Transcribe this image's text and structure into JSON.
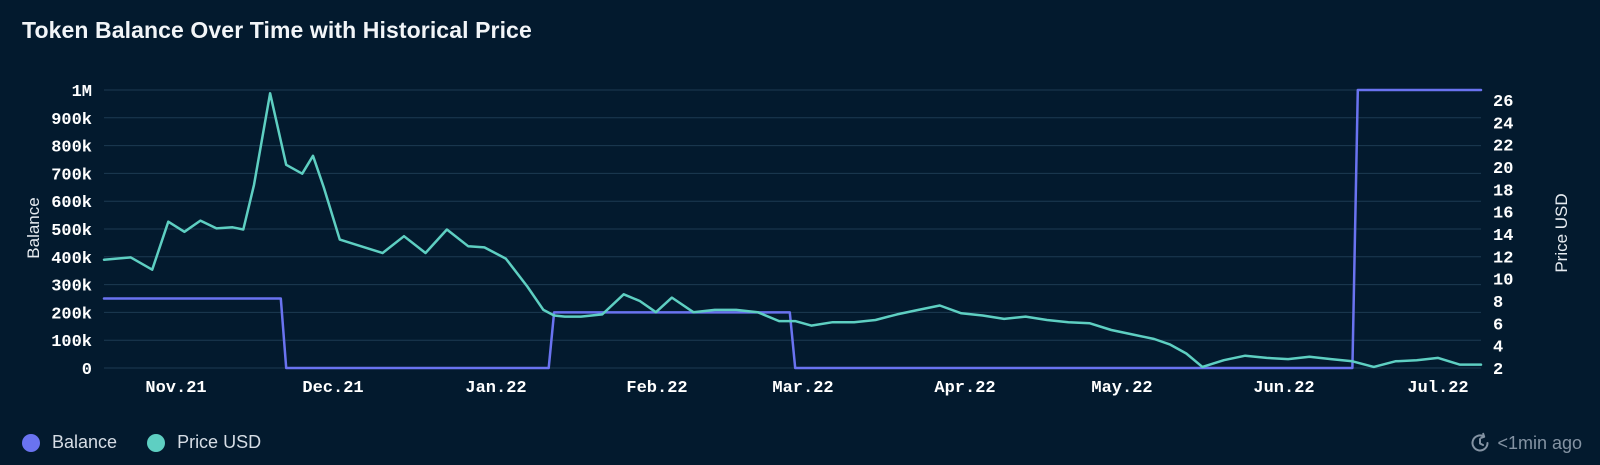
{
  "header": {
    "title": "Token Balance Over Time with Historical Price"
  },
  "footer": {
    "updated": "<1min ago",
    "updated_icon": "refresh-clock-icon"
  },
  "colors": {
    "balance": "#6a73f0",
    "price": "#5ecfc2",
    "grid": "#1d3a52",
    "background": "#031a2e"
  },
  "chart_data": {
    "type": "line",
    "title": "Token Balance Over Time with Historical Price",
    "x_labels": [
      "Nov.21",
      "Dec.21",
      "Jan.22",
      "Feb.22",
      "Mar.22",
      "Apr.22",
      "May.22",
      "Jun.22",
      "Jul.22"
    ],
    "x_range": [
      "2021-10-25",
      "2022-07-09"
    ],
    "y_left": {
      "label": "Balance",
      "range": [
        0,
        1000000
      ],
      "ticks": [
        0,
        100000,
        200000,
        300000,
        400000,
        500000,
        600000,
        700000,
        800000,
        900000,
        1000000
      ],
      "tick_labels": [
        "0",
        "100k",
        "200k",
        "300k",
        "400k",
        "500k",
        "600k",
        "700k",
        "800k",
        "900k",
        "1M"
      ]
    },
    "y_right": {
      "label": "Price USD",
      "range": [
        2,
        27
      ],
      "ticks": [
        2,
        4,
        6,
        8,
        10,
        12,
        14,
        16,
        18,
        20,
        22,
        24,
        26
      ],
      "tick_labels": [
        "2",
        "4",
        "6",
        "8",
        "10",
        "12",
        "14",
        "16",
        "18",
        "20",
        "22",
        "24",
        "26"
      ]
    },
    "grid": true,
    "legend": "bottom-left",
    "series": [
      {
        "name": "Balance",
        "axis": "left",
        "step": true,
        "x": [
          "2021-10-25",
          "2021-11-27",
          "2021-11-28",
          "2022-01-16",
          "2022-01-17",
          "2022-03-02",
          "2022-03-03",
          "2022-06-15",
          "2022-06-16",
          "2022-07-09"
        ],
        "values": [
          250000,
          250000,
          0,
          0,
          200000,
          200000,
          0,
          0,
          1000000,
          1000000
        ]
      },
      {
        "name": "Price USD",
        "axis": "right",
        "x": [
          "2021-10-25",
          "2021-10-30",
          "2021-11-03",
          "2021-11-06",
          "2021-11-09",
          "2021-11-12",
          "2021-11-15",
          "2021-11-18",
          "2021-11-20",
          "2021-11-22",
          "2021-11-25",
          "2021-11-28",
          "2021-12-01",
          "2021-12-03",
          "2021-12-05",
          "2021-12-08",
          "2021-12-12",
          "2021-12-16",
          "2021-12-20",
          "2021-12-24",
          "2021-12-28",
          "2022-01-01",
          "2022-01-04",
          "2022-01-08",
          "2022-01-12",
          "2022-01-15",
          "2022-01-17",
          "2022-01-19",
          "2022-01-22",
          "2022-01-26",
          "2022-01-30",
          "2022-02-02",
          "2022-02-05",
          "2022-02-08",
          "2022-02-12",
          "2022-02-16",
          "2022-02-20",
          "2022-02-24",
          "2022-02-28",
          "2022-03-03",
          "2022-03-06",
          "2022-03-10",
          "2022-03-14",
          "2022-03-18",
          "2022-03-22",
          "2022-03-26",
          "2022-03-30",
          "2022-04-03",
          "2022-04-07",
          "2022-04-11",
          "2022-04-15",
          "2022-04-19",
          "2022-04-23",
          "2022-04-27",
          "2022-05-01",
          "2022-05-05",
          "2022-05-09",
          "2022-05-12",
          "2022-05-15",
          "2022-05-18",
          "2022-05-22",
          "2022-05-26",
          "2022-05-30",
          "2022-06-03",
          "2022-06-07",
          "2022-06-11",
          "2022-06-15",
          "2022-06-19",
          "2022-06-23",
          "2022-06-27",
          "2022-07-01",
          "2022-07-05",
          "2022-07-09"
        ],
        "values": [
          11.7,
          11.9,
          10.8,
          15.1,
          14.2,
          15.2,
          14.5,
          14.6,
          14.4,
          18.4,
          26.6,
          20.2,
          19.4,
          21.0,
          18.2,
          13.5,
          12.9,
          12.3,
          13.8,
          12.3,
          14.4,
          12.9,
          12.8,
          11.8,
          9.3,
          7.2,
          6.7,
          6.6,
          6.6,
          6.8,
          8.6,
          8.0,
          7.0,
          8.3,
          7.0,
          7.2,
          7.2,
          7.0,
          6.2,
          6.2,
          5.8,
          6.1,
          6.1,
          6.3,
          6.8,
          7.2,
          7.6,
          6.9,
          6.7,
          6.4,
          6.6,
          6.3,
          6.1,
          6.0,
          5.4,
          5.0,
          4.6,
          4.1,
          3.3,
          2.1,
          2.7,
          3.1,
          2.9,
          2.8,
          3.0,
          2.8,
          2.6,
          2.1,
          2.6,
          2.7,
          2.9,
          2.3,
          2.3
        ]
      }
    ]
  }
}
